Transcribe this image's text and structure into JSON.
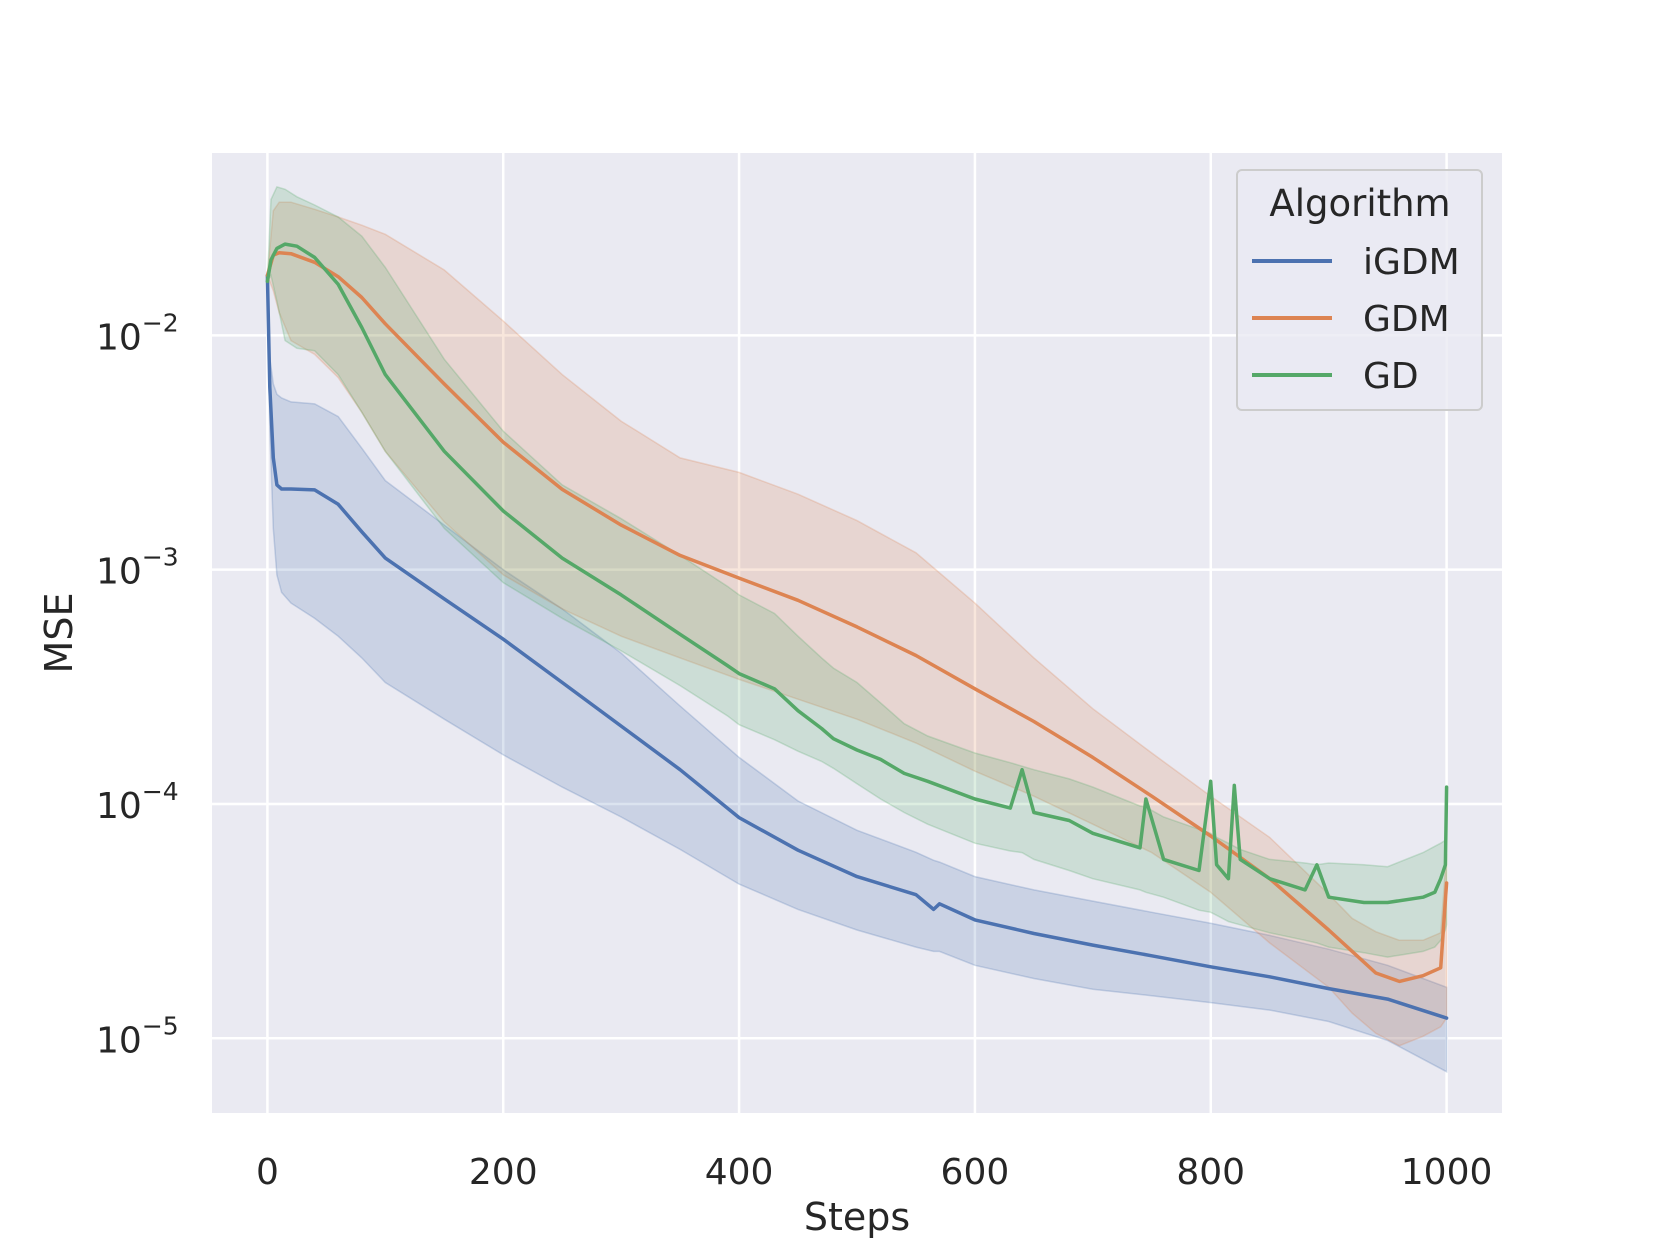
{
  "chart_data": {
    "type": "line",
    "title": "",
    "xlabel": "Steps",
    "ylabel": "MSE",
    "yscale": "log",
    "xlim": [
      -47,
      1047
    ],
    "ylim": [
      4.8e-06,
      0.06
    ],
    "x_ticks": [
      {
        "value": 0,
        "label": "0"
      },
      {
        "value": 200,
        "label": "200"
      },
      {
        "value": 400,
        "label": "400"
      },
      {
        "value": 600,
        "label": "600"
      },
      {
        "value": 800,
        "label": "800"
      },
      {
        "value": 1000,
        "label": "1000"
      }
    ],
    "y_ticks": [
      {
        "value": 1e-05,
        "base": "10",
        "exp": "−5"
      },
      {
        "value": 0.0001,
        "base": "10",
        "exp": "−4"
      },
      {
        "value": 0.001,
        "base": "10",
        "exp": "−3"
      },
      {
        "value": 0.01,
        "base": "10",
        "exp": "−2"
      }
    ],
    "grid": true,
    "legend": {
      "title": "Algorithm",
      "placement": "top-right"
    },
    "series": [
      {
        "name": "iGDM",
        "color": "#4c72b0",
        "x": [
          0,
          2,
          5,
          8,
          12,
          20,
          40,
          60,
          80,
          100,
          150,
          200,
          250,
          300,
          350,
          400,
          450,
          500,
          550,
          565,
          570,
          600,
          650,
          700,
          750,
          800,
          850,
          900,
          950,
          1000
        ],
        "mean": [
          0.018,
          0.006,
          0.003,
          0.0023,
          0.00221,
          0.00221,
          0.00219,
          0.0019,
          0.00145,
          0.00112,
          0.00075,
          0.000505,
          0.00033,
          0.000215,
          0.00014,
          8.75e-05,
          6.35e-05,
          4.9e-05,
          4.1e-05,
          3.55e-05,
          3.75e-05,
          3.2e-05,
          2.8e-05,
          2.5e-05,
          2.25e-05,
          2.02e-05,
          1.83e-05,
          1.63e-05,
          1.47e-05,
          1.22e-05
        ],
        "lower": [
          0.018,
          0.004,
          0.0015,
          0.00095,
          0.0008,
          0.00072,
          0.00062,
          0.00052,
          0.00042,
          0.00033,
          0.00023,
          0.000162,
          0.000118,
          8.8e-05,
          6.4e-05,
          4.55e-05,
          3.55e-05,
          2.9e-05,
          2.45e-05,
          2.35e-05,
          2.35e-05,
          2.05e-05,
          1.8e-05,
          1.62e-05,
          1.52e-05,
          1.42e-05,
          1.32e-05,
          1.18e-05,
          9.8e-06,
          7.2e-06
        ],
        "upper": [
          0.018,
          0.008,
          0.0062,
          0.0056,
          0.0054,
          0.0052,
          0.0051,
          0.0045,
          0.0033,
          0.0024,
          0.00155,
          0.001,
          0.00068,
          0.00044,
          0.000262,
          0.000158,
          0.000103,
          7.72e-05,
          6.22e-05,
          5.75e-05,
          5.65e-05,
          4.9e-05,
          4.3e-05,
          3.85e-05,
          3.45e-05,
          3.1e-05,
          2.75e-05,
          2.4e-05,
          2.05e-05,
          1.65e-05
        ]
      },
      {
        "name": "GDM",
        "color": "#dd8452",
        "x": [
          0,
          5,
          10,
          20,
          40,
          60,
          80,
          100,
          150,
          200,
          250,
          300,
          350,
          400,
          450,
          500,
          550,
          600,
          650,
          700,
          750,
          800,
          850,
          900,
          920,
          940,
          960,
          980,
          995,
          1000
        ],
        "mean": [
          0.018,
          0.022,
          0.0225,
          0.0223,
          0.0205,
          0.0178,
          0.0145,
          0.0112,
          0.0062,
          0.0035,
          0.0022,
          0.00155,
          0.00115,
          0.00092,
          0.00074,
          0.00057,
          0.00043,
          0.00031,
          0.000225,
          0.000158,
          0.000108,
          7.3e-05,
          4.8e-05,
          2.9e-05,
          2.35e-05,
          1.9e-05,
          1.75e-05,
          1.85e-05,
          2e-05,
          4.6e-05
        ],
        "lower": [
          0.018,
          0.0155,
          0.0125,
          0.0095,
          0.0083,
          0.0066,
          0.0047,
          0.0032,
          0.0016,
          0.00095,
          0.00068,
          0.00052,
          0.00042,
          0.00034,
          0.00028,
          0.00023,
          0.000182,
          0.000138,
          0.000108,
          8.2e-05,
          6.2e-05,
          4.2e-05,
          2.55e-05,
          1.65e-05,
          1.28e-05,
          1.05e-05,
          9.3e-06,
          1.02e-05,
          1.12e-05,
          1.22e-05
        ],
        "upper": [
          0.018,
          0.034,
          0.037,
          0.037,
          0.0345,
          0.032,
          0.0295,
          0.027,
          0.019,
          0.0115,
          0.0068,
          0.0043,
          0.003,
          0.0026,
          0.0021,
          0.00162,
          0.00118,
          0.00072,
          0.00042,
          0.000255,
          0.000165,
          0.000108,
          7.2e-05,
          4.12e-05,
          3.25e-05,
          2.85e-05,
          2.62e-05,
          2.62e-05,
          2.82e-05,
          6.12e-05
        ]
      },
      {
        "name": "GD",
        "color": "#55a868",
        "x": [
          0,
          3,
          8,
          15,
          25,
          40,
          60,
          80,
          100,
          150,
          200,
          250,
          300,
          350,
          390,
          400,
          430,
          450,
          470,
          480,
          500,
          520,
          540,
          560,
          600,
          630,
          640,
          650,
          680,
          700,
          740,
          745,
          760,
          790,
          800,
          805,
          815,
          820,
          825,
          850,
          880,
          890,
          900,
          930,
          950,
          980,
          990,
          995,
          999,
          1000
        ],
        "mean": [
          0.017,
          0.021,
          0.0235,
          0.0245,
          0.024,
          0.0215,
          0.0165,
          0.0108,
          0.0068,
          0.0032,
          0.00178,
          0.00112,
          0.00078,
          0.00053,
          0.00039,
          0.00036,
          0.00031,
          0.00025,
          0.00021,
          0.00019,
          0.00017,
          0.000155,
          0.000135,
          0.000125,
          0.000105,
          9.6e-05,
          0.00014,
          9.2e-05,
          8.5e-05,
          7.5e-05,
          6.5e-05,
          0.000105,
          5.8e-05,
          5.2e-05,
          0.000125,
          5.5e-05,
          4.8e-05,
          0.00012,
          5.8e-05,
          4.8e-05,
          4.3e-05,
          5.5e-05,
          4e-05,
          3.8e-05,
          3.8e-05,
          4e-05,
          4.2e-05,
          4.8e-05,
          5.5e-05,
          0.000118
        ],
        "lower": [
          0.017,
          0.018,
          0.014,
          0.0095,
          0.0088,
          0.0086,
          0.0068,
          0.0047,
          0.0032,
          0.0015,
          0.00088,
          0.00062,
          0.00045,
          0.00032,
          0.000238,
          0.000218,
          0.000188,
          0.000168,
          0.000152,
          0.000142,
          0.000122,
          0.000105,
          9.2e-05,
          8.2e-05,
          6.8e-05,
          6.3e-05,
          6.2e-05,
          5.8e-05,
          5.2e-05,
          4.8e-05,
          4.3e-05,
          4.2e-05,
          4e-05,
          3.52e-05,
          3.45e-05,
          3.35e-05,
          3.15e-05,
          3.1e-05,
          3.05e-05,
          2.82e-05,
          2.62e-05,
          2.55e-05,
          2.45e-05,
          2.32e-05,
          2.22e-05,
          2.35e-05,
          2.45e-05,
          2.62e-05,
          2.9e-05,
          3.05e-05
        ],
        "upper": [
          0.017,
          0.038,
          0.043,
          0.042,
          0.039,
          0.036,
          0.032,
          0.0265,
          0.0195,
          0.0079,
          0.0039,
          0.0023,
          0.00165,
          0.00115,
          0.00085,
          0.00078,
          0.00065,
          0.00052,
          0.00042,
          0.00038,
          0.00033,
          0.00027,
          0.00022,
          0.000195,
          0.000165,
          0.00015,
          0.000145,
          0.00014,
          0.000128,
          0.000118,
          9.8e-05,
          9.7e-05,
          8.8e-05,
          7.8e-05,
          7.5e-05,
          7.2e-05,
          6.8e-05,
          6.6e-05,
          6.4e-05,
          5.8e-05,
          5.6e-05,
          5.5e-05,
          5.6e-05,
          5.5e-05,
          5.4e-05,
          6.2e-05,
          6.6e-05,
          6.8e-05,
          7e-05,
          7.2e-05
        ]
      }
    ]
  }
}
